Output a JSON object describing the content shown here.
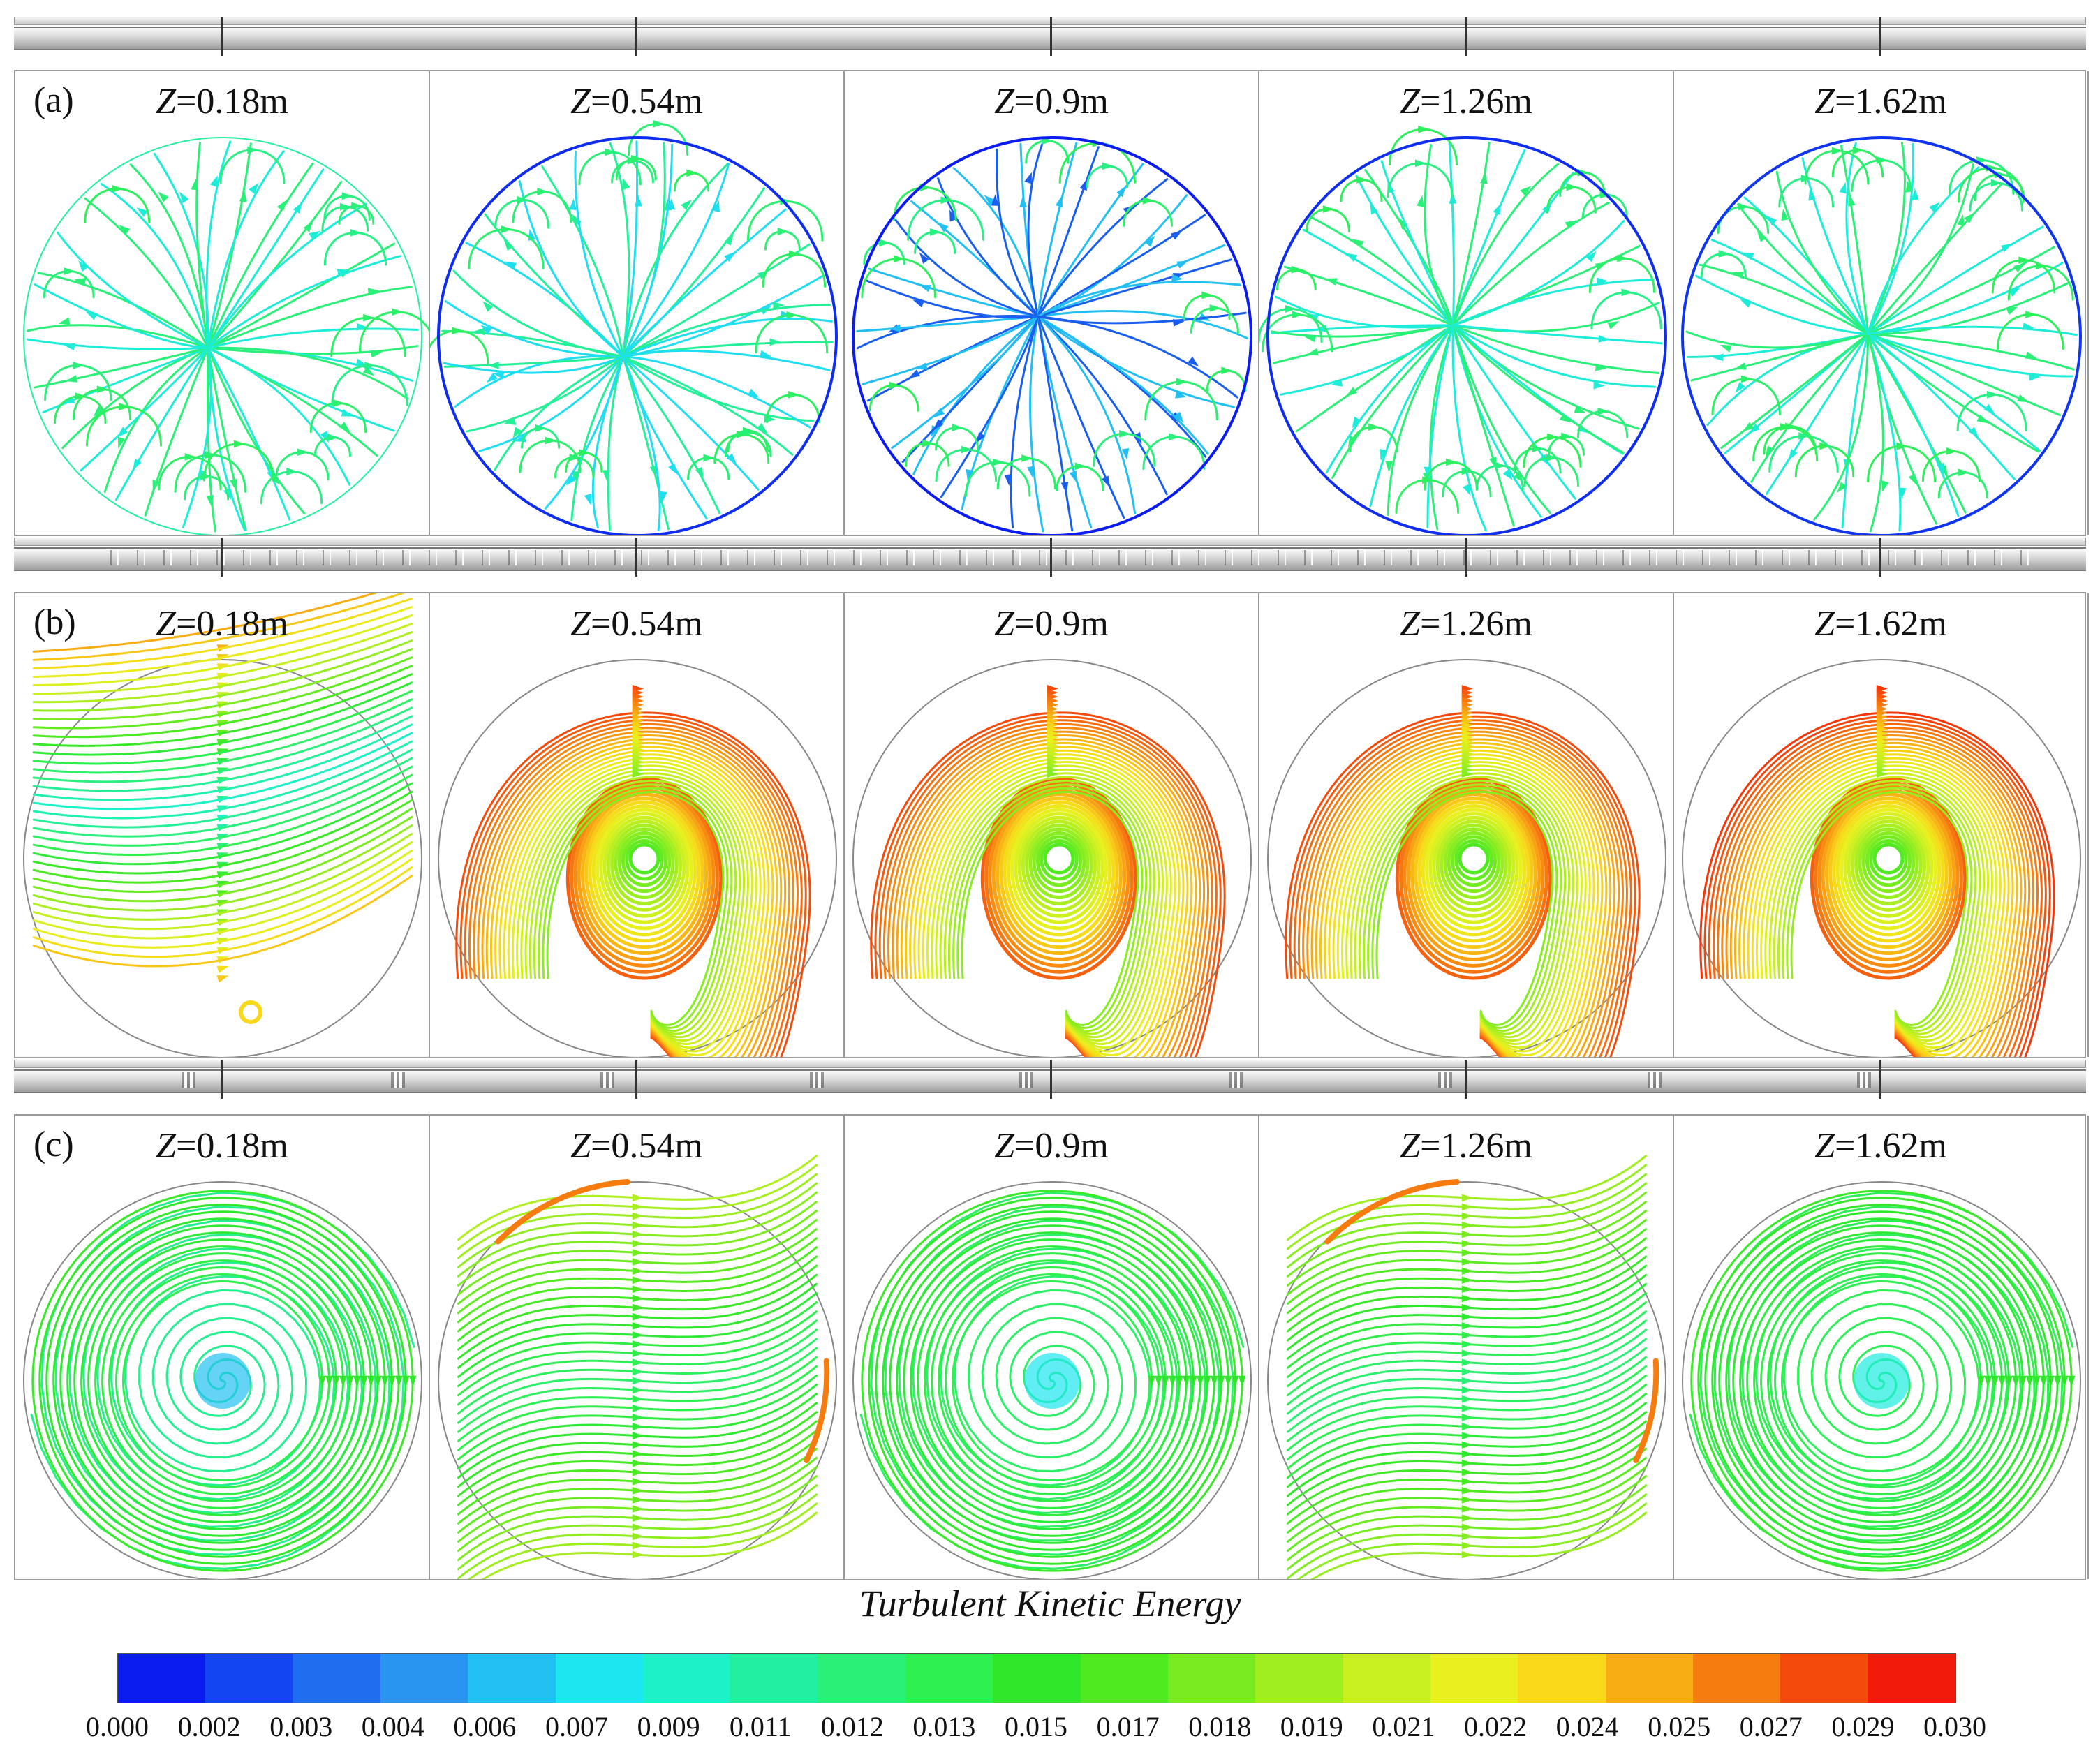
{
  "z_labels": [
    "0.18m",
    "0.54m",
    "0.9m",
    "1.26m",
    "1.62m"
  ],
  "z_prefix": "Z",
  "z_eq": "=",
  "rows": [
    {
      "label": "(a)",
      "pattern": "sparse",
      "panels": [
        {
          "center": 0.28,
          "wall": 0.35,
          "swirl": 0.0
        },
        {
          "center": 0.24,
          "wall": 0.02,
          "swirl": 0.0
        },
        {
          "center": 0.08,
          "wall": 0.0,
          "swirl": 0.0
        },
        {
          "center": 0.28,
          "wall": 0.02,
          "swirl": 0.0
        },
        {
          "center": 0.28,
          "wall": 0.03,
          "swirl": 0.0
        }
      ]
    },
    {
      "label": "(b)",
      "pattern": "vortex",
      "panels": [
        {
          "center": 0.3,
          "wall": 0.85,
          "swirl": 0.0
        },
        {
          "center": 0.55,
          "wall": 0.95,
          "swirl": 1.0
        },
        {
          "center": 0.55,
          "wall": 0.95,
          "swirl": 1.0
        },
        {
          "center": 0.55,
          "wall": 0.95,
          "swirl": 1.0
        },
        {
          "center": 0.55,
          "wall": 0.97,
          "swirl": 1.0
        }
      ]
    },
    {
      "label": "(c)",
      "pattern": "spiral",
      "panels": [
        {
          "center": 0.25,
          "wall": 0.5,
          "swirl": 1.0
        },
        {
          "center": 0.42,
          "wall": 0.9,
          "swirl": 0.5
        },
        {
          "center": 0.3,
          "wall": 0.5,
          "swirl": 1.0
        },
        {
          "center": 0.4,
          "wall": 0.9,
          "swirl": 0.5
        },
        {
          "center": 0.32,
          "wall": 0.5,
          "swirl": 1.0
        }
      ]
    }
  ],
  "colorbar": {
    "title": "Turbulent Kinetic Energy",
    "ticks": [
      "0.000",
      "0.002",
      "0.003",
      "0.004",
      "0.006",
      "0.007",
      "0.009",
      "0.011",
      "0.012",
      "0.013",
      "0.015",
      "0.017",
      "0.018",
      "0.019",
      "0.021",
      "0.022",
      "0.024",
      "0.025",
      "0.027",
      "0.029",
      "0.030"
    ],
    "colors": [
      "#0a1cf0",
      "#1346f0",
      "#1f6ef0",
      "#2a95f0",
      "#22c0f2",
      "#1ee6f0",
      "#1cf2c8",
      "#22f0a0",
      "#2af078",
      "#2ef050",
      "#30e82a",
      "#50ea20",
      "#78ec20",
      "#a0ee20",
      "#c8f020",
      "#e8f01e",
      "#f8d818",
      "#f8ac14",
      "#f67c10",
      "#f44a0c",
      "#f21a0a"
    ]
  }
}
